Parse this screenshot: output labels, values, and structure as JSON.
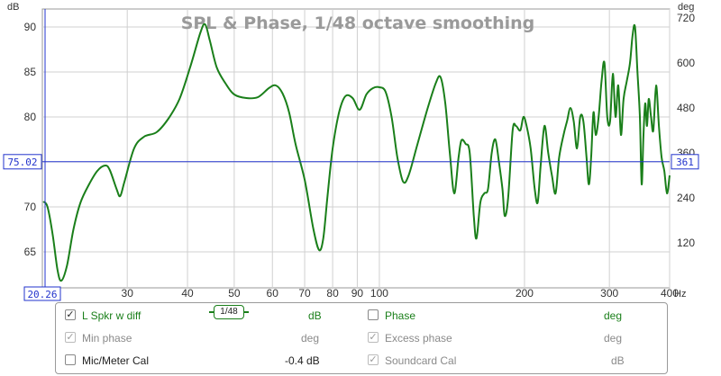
{
  "chart_data": {
    "type": "line",
    "title": "SPL & Phase, 1/48 octave smoothing",
    "left_unit": "dB",
    "right_unit": "deg",
    "x_unit": "Hz",
    "x_scale": "log",
    "xlim": [
      20,
      400
    ],
    "ylim_left": [
      61,
      92
    ],
    "ylim_right": [
      0,
      744
    ],
    "grid": true,
    "x_ticks": [
      30,
      40,
      50,
      60,
      70,
      80,
      90,
      100,
      200,
      300,
      400
    ],
    "x_tick_labels": [
      "30",
      "40",
      "50",
      "60",
      "70",
      "80",
      "90",
      "100",
      "200",
      "300",
      "400"
    ],
    "y_ticks_left": [
      65,
      70,
      75,
      80,
      85,
      90
    ],
    "y_ticks_right": [
      120,
      240,
      360,
      480,
      600,
      720
    ],
    "cursor": {
      "y_label": "75.02",
      "y_value": 75.02,
      "right_label": "361",
      "x_label": "20.26",
      "x_value": 20.26
    },
    "series": [
      {
        "name": "L Spkr w diff",
        "color": "#1a7f1a",
        "points": [
          [
            20.1,
            70.6
          ],
          [
            20.5,
            70.0
          ],
          [
            21.0,
            67.0
          ],
          [
            21.5,
            63.0
          ],
          [
            21.9,
            61.8
          ],
          [
            22.5,
            63.5
          ],
          [
            23.2,
            67.5
          ],
          [
            24.0,
            70.5
          ],
          [
            25.0,
            72.5
          ],
          [
            26.0,
            74.0
          ],
          [
            27.0,
            74.6
          ],
          [
            27.6,
            74.1
          ],
          [
            28.5,
            72.0
          ],
          [
            29.0,
            71.2
          ],
          [
            29.6,
            72.8
          ],
          [
            31.0,
            76.5
          ],
          [
            32.5,
            77.8
          ],
          [
            34.5,
            78.3
          ],
          [
            36.5,
            79.8
          ],
          [
            38.5,
            82.0
          ],
          [
            40.5,
            85.5
          ],
          [
            42.5,
            89.3
          ],
          [
            43.5,
            90.3
          ],
          [
            44.5,
            88.5
          ],
          [
            46.0,
            85.5
          ],
          [
            48.0,
            83.7
          ],
          [
            50.0,
            82.5
          ],
          [
            53.0,
            82.1
          ],
          [
            56.0,
            82.2
          ],
          [
            59.0,
            83.2
          ],
          [
            61.0,
            83.5
          ],
          [
            63.0,
            82.6
          ],
          [
            65.0,
            80.5
          ],
          [
            67.0,
            77.0
          ],
          [
            70.0,
            73.0
          ],
          [
            73.0,
            67.5
          ],
          [
            75.0,
            65.2
          ],
          [
            76.5,
            66.5
          ],
          [
            78.0,
            71.0
          ],
          [
            80.0,
            76.5
          ],
          [
            82.5,
            80.5
          ],
          [
            85.0,
            82.3
          ],
          [
            88.0,
            82.1
          ],
          [
            91.0,
            80.8
          ],
          [
            94.0,
            82.5
          ],
          [
            97.0,
            83.2
          ],
          [
            100.0,
            83.3
          ],
          [
            103.0,
            82.8
          ],
          [
            106.0,
            80.0
          ],
          [
            109.0,
            75.5
          ],
          [
            112.0,
            72.8
          ],
          [
            115.0,
            73.5
          ],
          [
            120.0,
            77.0
          ],
          [
            126.0,
            81.0
          ],
          [
            131.0,
            83.8
          ],
          [
            134.0,
            84.4
          ],
          [
            137.0,
            81.5
          ],
          [
            140.0,
            76.0
          ],
          [
            143.0,
            71.5
          ],
          [
            146.0,
            75.5
          ],
          [
            148.0,
            77.4
          ],
          [
            151.0,
            77.0
          ],
          [
            154.0,
            76.0
          ],
          [
            157.0,
            69.0
          ],
          [
            159.0,
            66.5
          ],
          [
            162.0,
            70.5
          ],
          [
            165.0,
            71.5
          ],
          [
            168.0,
            72.0
          ],
          [
            171.0,
            76.0
          ],
          [
            174.0,
            77.5
          ],
          [
            177.0,
            75.0
          ],
          [
            180.0,
            72.0
          ],
          [
            182.0,
            69.0
          ],
          [
            185.0,
            71.0
          ],
          [
            189.0,
            78.5
          ],
          [
            192.0,
            79.0
          ],
          [
            196.0,
            78.5
          ],
          [
            199.0,
            80.0
          ],
          [
            202.0,
            79.0
          ],
          [
            206.0,
            76.5
          ],
          [
            210.0,
            72.0
          ],
          [
            213.0,
            70.5
          ],
          [
            216.0,
            74.5
          ],
          [
            220.0,
            79.0
          ],
          [
            224.0,
            76.0
          ],
          [
            228.0,
            73.5
          ],
          [
            232.0,
            71.5
          ],
          [
            236.0,
            75.5
          ],
          [
            241.0,
            78.0
          ],
          [
            245.0,
            79.5
          ],
          [
            249.0,
            81.0
          ],
          [
            253.0,
            79.5
          ],
          [
            257.0,
            76.5
          ],
          [
            261.0,
            80.0
          ],
          [
            265.0,
            79.5
          ],
          [
            269.0,
            75.5
          ],
          [
            272.0,
            72.5
          ],
          [
            275.0,
            75.5
          ],
          [
            278.0,
            80.5
          ],
          [
            281.0,
            78.0
          ],
          [
            285.0,
            80.0
          ],
          [
            289.0,
            84.0
          ],
          [
            293.0,
            86.0
          ],
          [
            297.0,
            80.0
          ],
          [
            301.0,
            79.5
          ],
          [
            305.0,
            84.8
          ],
          [
            309.0,
            80.0
          ],
          [
            313.0,
            83.5
          ],
          [
            317.0,
            78.0
          ],
          [
            321.0,
            82.0
          ],
          [
            326.0,
            84.0
          ],
          [
            331.0,
            86.0
          ],
          [
            335.0,
            89.0
          ],
          [
            339.0,
            90.0
          ],
          [
            343.0,
            85.0
          ],
          [
            347.0,
            80.0
          ],
          [
            350.0,
            72.5
          ],
          [
            353.0,
            78.0
          ],
          [
            356.0,
            81.5
          ],
          [
            359.0,
            79.0
          ],
          [
            362.0,
            82.0
          ],
          [
            366.0,
            80.0
          ],
          [
            370.0,
            78.5
          ],
          [
            375.0,
            83.5
          ],
          [
            380.0,
            79.0
          ],
          [
            385.0,
            75.5
          ],
          [
            390.0,
            74.0
          ],
          [
            395.0,
            71.5
          ],
          [
            400.0,
            73.5
          ]
        ]
      }
    ]
  },
  "legend": {
    "rows": [
      {
        "check": "✓",
        "name": "L Spkr w diff",
        "smoothing": "1/48",
        "unit": "dB",
        "check2": "",
        "name2": "Phase",
        "unit2": "deg"
      },
      {
        "check": "✓",
        "name": "Min phase",
        "unit": "deg",
        "check2": "✓",
        "name2": "Excess phase",
        "unit2": "deg"
      },
      {
        "check": "",
        "name": "Mic/Meter Cal",
        "unit": "-0.4 dB",
        "check2": "✓",
        "name2": "Soundcard Cal",
        "unit2": "dB"
      }
    ]
  }
}
